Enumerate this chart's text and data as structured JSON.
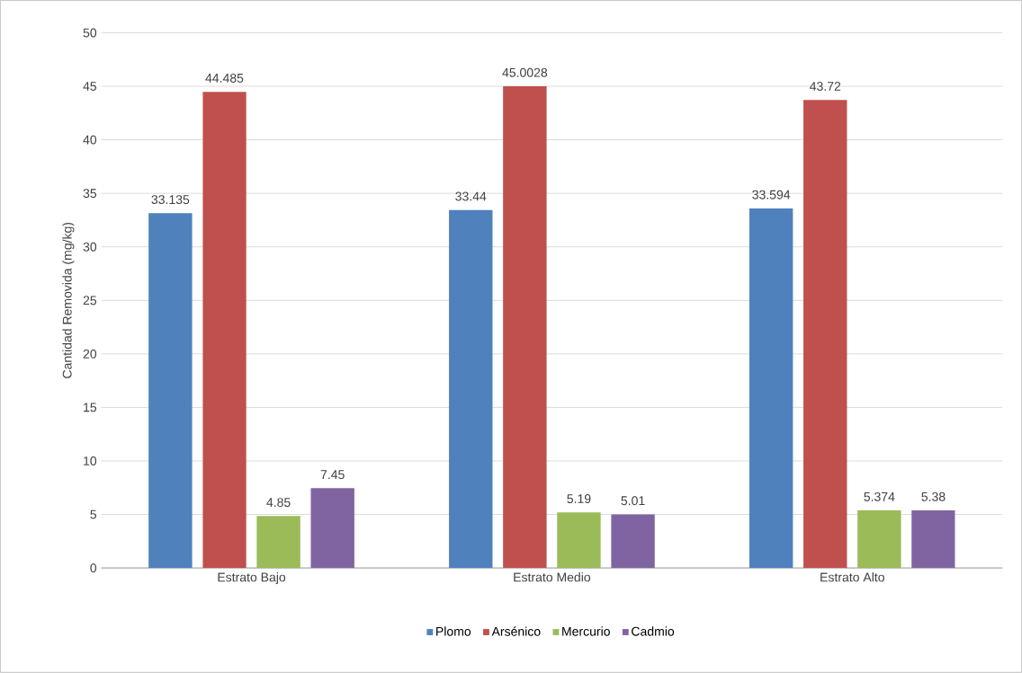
{
  "chart_data": {
    "type": "bar",
    "ylabel": "Cantidad Removida (mg/kg)",
    "categories": [
      "Estrato Bajo",
      "Estrato Medio",
      "Estrato Alto"
    ],
    "series": [
      {
        "name": "Plomo",
        "color": "#4f81bd",
        "values": [
          33.135,
          33.44,
          33.594
        ]
      },
      {
        "name": "Arsénico",
        "color": "#c0504d",
        "values": [
          44.485,
          45.0028,
          43.72
        ]
      },
      {
        "name": "Mercurio",
        "color": "#9bbb59",
        "values": [
          4.85,
          5.19,
          5.374
        ]
      },
      {
        "name": "Cadmio",
        "color": "#8064a2",
        "values": [
          7.45,
          5.01,
          5.38
        ]
      }
    ],
    "ylim": [
      0,
      50
    ],
    "yticks": [
      0,
      5,
      10,
      15,
      20,
      25,
      30,
      35,
      40,
      45,
      50
    ],
    "grid": "y",
    "legend": "bottom",
    "data_labels": true
  }
}
